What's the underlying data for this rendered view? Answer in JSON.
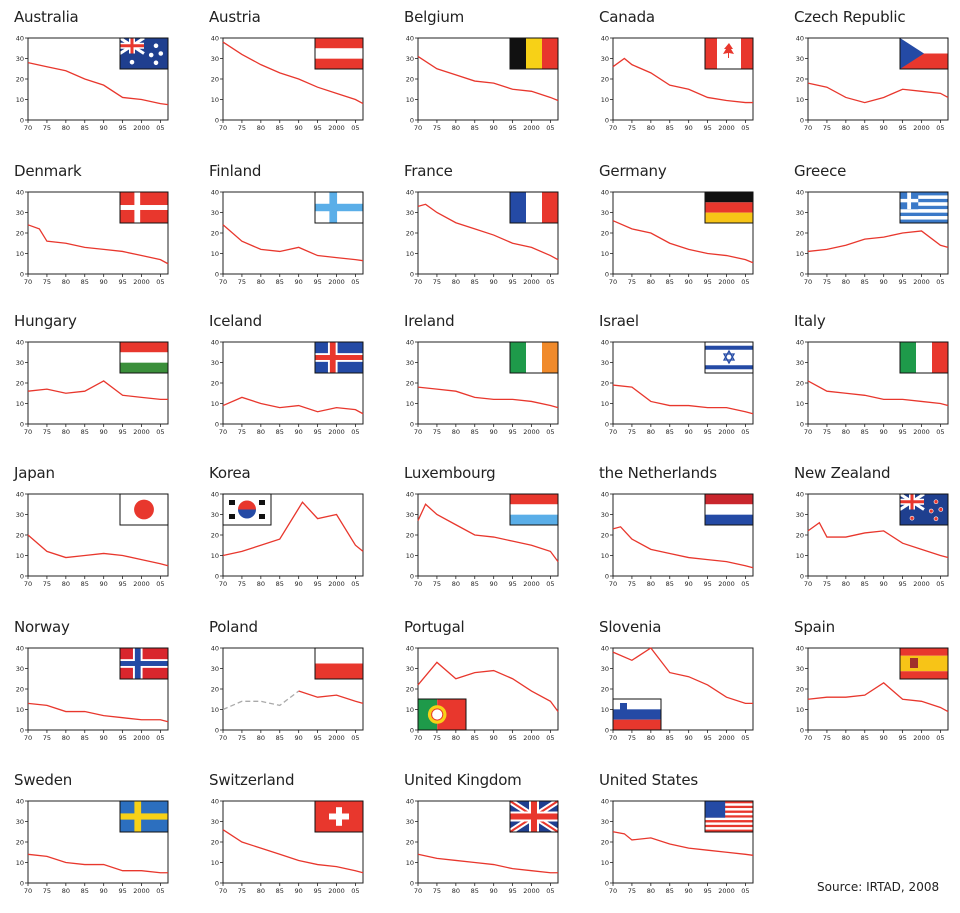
{
  "source": "Source: IRTAD, 2008",
  "chart_data": [
    {
      "type": "line",
      "title": "Australia",
      "flag": "australia",
      "x": [
        1970,
        1975,
        1980,
        1985,
        1990,
        1995,
        2000,
        2005,
        2007
      ],
      "y": [
        28,
        26,
        24,
        20,
        17,
        11,
        10,
        8,
        7.5
      ]
    },
    {
      "type": "line",
      "title": "Austria",
      "flag": "austria",
      "x": [
        1970,
        1975,
        1980,
        1985,
        1990,
        1995,
        2000,
        2005,
        2007
      ],
      "y": [
        38,
        32,
        27,
        23,
        20,
        16,
        13,
        10,
        8
      ]
    },
    {
      "type": "line",
      "title": "Belgium",
      "flag": "belgium",
      "x": [
        1970,
        1975,
        1980,
        1985,
        1990,
        1995,
        2000,
        2005,
        2007
      ],
      "y": [
        31,
        25,
        22,
        19,
        18,
        15,
        14,
        11,
        9.5
      ]
    },
    {
      "type": "line",
      "title": "Canada",
      "flag": "canada",
      "x": [
        1970,
        1973,
        1975,
        1980,
        1985,
        1990,
        1995,
        2000,
        2005,
        2007
      ],
      "y": [
        26,
        30,
        27,
        23,
        17,
        15,
        11,
        9.5,
        8.5,
        8.5
      ]
    },
    {
      "type": "line",
      "title": "Czech Republic",
      "flag": "czech",
      "x": [
        1970,
        1975,
        1980,
        1985,
        1990,
        1995,
        2000,
        2005,
        2007
      ],
      "y": [
        18,
        16,
        11,
        8.5,
        11,
        15,
        14,
        13,
        11
      ]
    },
    {
      "type": "line",
      "title": "Denmark",
      "flag": "denmark",
      "x": [
        1970,
        1973,
        1975,
        1980,
        1985,
        1990,
        1995,
        2000,
        2005,
        2007
      ],
      "y": [
        24,
        22,
        16,
        15,
        13,
        12,
        11,
        9,
        7,
        5
      ]
    },
    {
      "type": "line",
      "title": "Finland",
      "flag": "finland",
      "x": [
        1970,
        1975,
        1980,
        1985,
        1990,
        1995,
        2000,
        2005,
        2007
      ],
      "y": [
        24,
        16,
        12,
        11,
        13,
        9,
        8,
        7,
        6.5
      ]
    },
    {
      "type": "line",
      "title": "France",
      "flag": "france",
      "x": [
        1970,
        1972,
        1975,
        1980,
        1985,
        1990,
        1995,
        2000,
        2005,
        2007
      ],
      "y": [
        33,
        34,
        30,
        25,
        22,
        19,
        15,
        13,
        9,
        7
      ]
    },
    {
      "type": "line",
      "title": "Germany",
      "flag": "germany",
      "x": [
        1970,
        1975,
        1980,
        1985,
        1990,
        1995,
        2000,
        2005,
        2007
      ],
      "y": [
        26,
        22,
        20,
        15,
        12,
        10,
        9,
        7,
        5.5
      ]
    },
    {
      "type": "line",
      "title": "Greece",
      "flag": "greece",
      "x": [
        1970,
        1975,
        1980,
        1985,
        1990,
        1995,
        2000,
        2005,
        2007
      ],
      "y": [
        11,
        12,
        14,
        17,
        18,
        20,
        21,
        14,
        13
      ]
    },
    {
      "type": "line",
      "title": "Hungary",
      "flag": "hungary",
      "x": [
        1970,
        1975,
        1980,
        1985,
        1990,
        1995,
        2000,
        2005,
        2007
      ],
      "y": [
        16,
        17,
        15,
        16,
        21,
        14,
        13,
        12,
        12
      ]
    },
    {
      "type": "line",
      "title": "Iceland",
      "flag": "iceland",
      "x": [
        1970,
        1975,
        1980,
        1985,
        1990,
        1995,
        2000,
        2005,
        2007
      ],
      "y": [
        9,
        13,
        10,
        8,
        9,
        6,
        8,
        7,
        5
      ]
    },
    {
      "type": "line",
      "title": "Ireland",
      "flag": "ireland",
      "x": [
        1970,
        1975,
        1980,
        1985,
        1990,
        1995,
        2000,
        2005,
        2007
      ],
      "y": [
        18,
        17,
        16,
        13,
        12,
        12,
        11,
        9,
        8
      ]
    },
    {
      "type": "line",
      "title": "Israel",
      "flag": "israel",
      "x": [
        1970,
        1975,
        1980,
        1985,
        1990,
        1995,
        2000,
        2005,
        2007
      ],
      "y": [
        19,
        18,
        11,
        9,
        9,
        8,
        8,
        6,
        5
      ]
    },
    {
      "type": "line",
      "title": "Italy",
      "flag": "italy",
      "x": [
        1970,
        1975,
        1980,
        1985,
        1990,
        1995,
        2000,
        2005,
        2007
      ],
      "y": [
        21,
        16,
        15,
        14,
        12,
        12,
        11,
        10,
        9
      ]
    },
    {
      "type": "line",
      "title": "Japan",
      "flag": "japan",
      "x": [
        1970,
        1975,
        1980,
        1985,
        1990,
        1995,
        2000,
        2005,
        2007
      ],
      "y": [
        20,
        12,
        9,
        10,
        11,
        10,
        8,
        6,
        5
      ]
    },
    {
      "type": "line",
      "title": "Korea",
      "flag": "korea",
      "x": [
        1970,
        1975,
        1980,
        1985,
        1990,
        1991,
        1995,
        2000,
        2005,
        2007
      ],
      "y": [
        10,
        12,
        15,
        18,
        33,
        36,
        28,
        30,
        15,
        12
      ]
    },
    {
      "type": "line",
      "title": "Luxembourg",
      "flag": "luxembourg",
      "x": [
        1970,
        1972,
        1975,
        1980,
        1985,
        1990,
        1995,
        2000,
        2005,
        2007
      ],
      "y": [
        27,
        35,
        30,
        25,
        20,
        19,
        17,
        15,
        12,
        7
      ]
    },
    {
      "type": "line",
      "title": "the Netherlands",
      "flag": "netherlands",
      "x": [
        1970,
        1972,
        1975,
        1980,
        1985,
        1990,
        1995,
        2000,
        2005,
        2007
      ],
      "y": [
        23,
        24,
        18,
        13,
        11,
        9,
        8,
        7,
        5,
        4
      ]
    },
    {
      "type": "line",
      "title": "New Zealand",
      "flag": "newzealand",
      "x": [
        1970,
        1973,
        1975,
        1980,
        1985,
        1990,
        1995,
        2000,
        2005,
        2007
      ],
      "y": [
        22,
        26,
        19,
        19,
        21,
        22,
        16,
        13,
        10,
        9
      ]
    },
    {
      "type": "line",
      "title": "Norway",
      "flag": "norway",
      "x": [
        1970,
        1975,
        1980,
        1985,
        1990,
        1995,
        2000,
        2005,
        2007
      ],
      "y": [
        13,
        12,
        9,
        9,
        7,
        6,
        5,
        5,
        4
      ]
    },
    {
      "type": "line",
      "title": "Poland",
      "flag": "poland",
      "x": [
        1970,
        1975,
        1980,
        1985,
        1990,
        1995,
        2000,
        2005,
        2007
      ],
      "y": [
        10,
        14,
        14,
        12,
        19,
        16,
        17,
        14,
        13
      ],
      "dashed_until": 1990
    },
    {
      "type": "line",
      "title": "Portugal",
      "flag": "portugal",
      "x": [
        1970,
        1975,
        1980,
        1985,
        1990,
        1995,
        2000,
        2005,
        2007
      ],
      "y": [
        22,
        33,
        25,
        28,
        29,
        25,
        19,
        14,
        9
      ]
    },
    {
      "type": "line",
      "title": "Slovenia",
      "flag": "slovenia",
      "x": [
        1970,
        1975,
        1980,
        1985,
        1990,
        1995,
        2000,
        2005,
        2007
      ],
      "y": [
        38,
        34,
        40,
        28,
        26,
        22,
        16,
        13,
        13
      ]
    },
    {
      "type": "line",
      "title": "Spain",
      "flag": "spain",
      "x": [
        1970,
        1975,
        1980,
        1985,
        1990,
        1995,
        2000,
        2005,
        2007
      ],
      "y": [
        15,
        16,
        16,
        17,
        23,
        15,
        14,
        11,
        9
      ]
    },
    {
      "type": "line",
      "title": "Sweden",
      "flag": "sweden",
      "x": [
        1970,
        1975,
        1980,
        1985,
        1990,
        1995,
        2000,
        2005,
        2007
      ],
      "y": [
        14,
        13,
        10,
        9,
        9,
        6,
        6,
        5,
        5
      ]
    },
    {
      "type": "line",
      "title": "Switzerland",
      "flag": "switzerland",
      "x": [
        1970,
        1975,
        1980,
        1985,
        1990,
        1995,
        2000,
        2005,
        2007
      ],
      "y": [
        26,
        20,
        17,
        14,
        11,
        9,
        8,
        6,
        5
      ]
    },
    {
      "type": "line",
      "title": "United Kingdom",
      "flag": "uk",
      "x": [
        1970,
        1975,
        1980,
        1985,
        1990,
        1995,
        2000,
        2005,
        2007
      ],
      "y": [
        14,
        12,
        11,
        10,
        9,
        7,
        6,
        5,
        5
      ]
    },
    {
      "type": "line",
      "title": "United States",
      "flag": "usa",
      "x": [
        1970,
        1973,
        1975,
        1980,
        1985,
        1990,
        1995,
        2000,
        2005,
        2007
      ],
      "y": [
        25,
        24,
        21,
        22,
        19,
        17,
        16,
        15,
        14,
        13.5
      ]
    }
  ],
  "axes": {
    "ylim": [
      0,
      40
    ],
    "yticks": [
      "0",
      "10",
      "20",
      "30",
      "40"
    ],
    "xlim": [
      1970,
      2007
    ],
    "xticks": [
      1970,
      1975,
      1980,
      1985,
      1990,
      1995,
      2000,
      2005
    ],
    "xtick_labels": [
      "70",
      "75",
      "80",
      "85",
      "90",
      "95",
      "2000",
      "05"
    ]
  },
  "colors": {
    "line": "#e8372d",
    "axis": "#222222"
  }
}
